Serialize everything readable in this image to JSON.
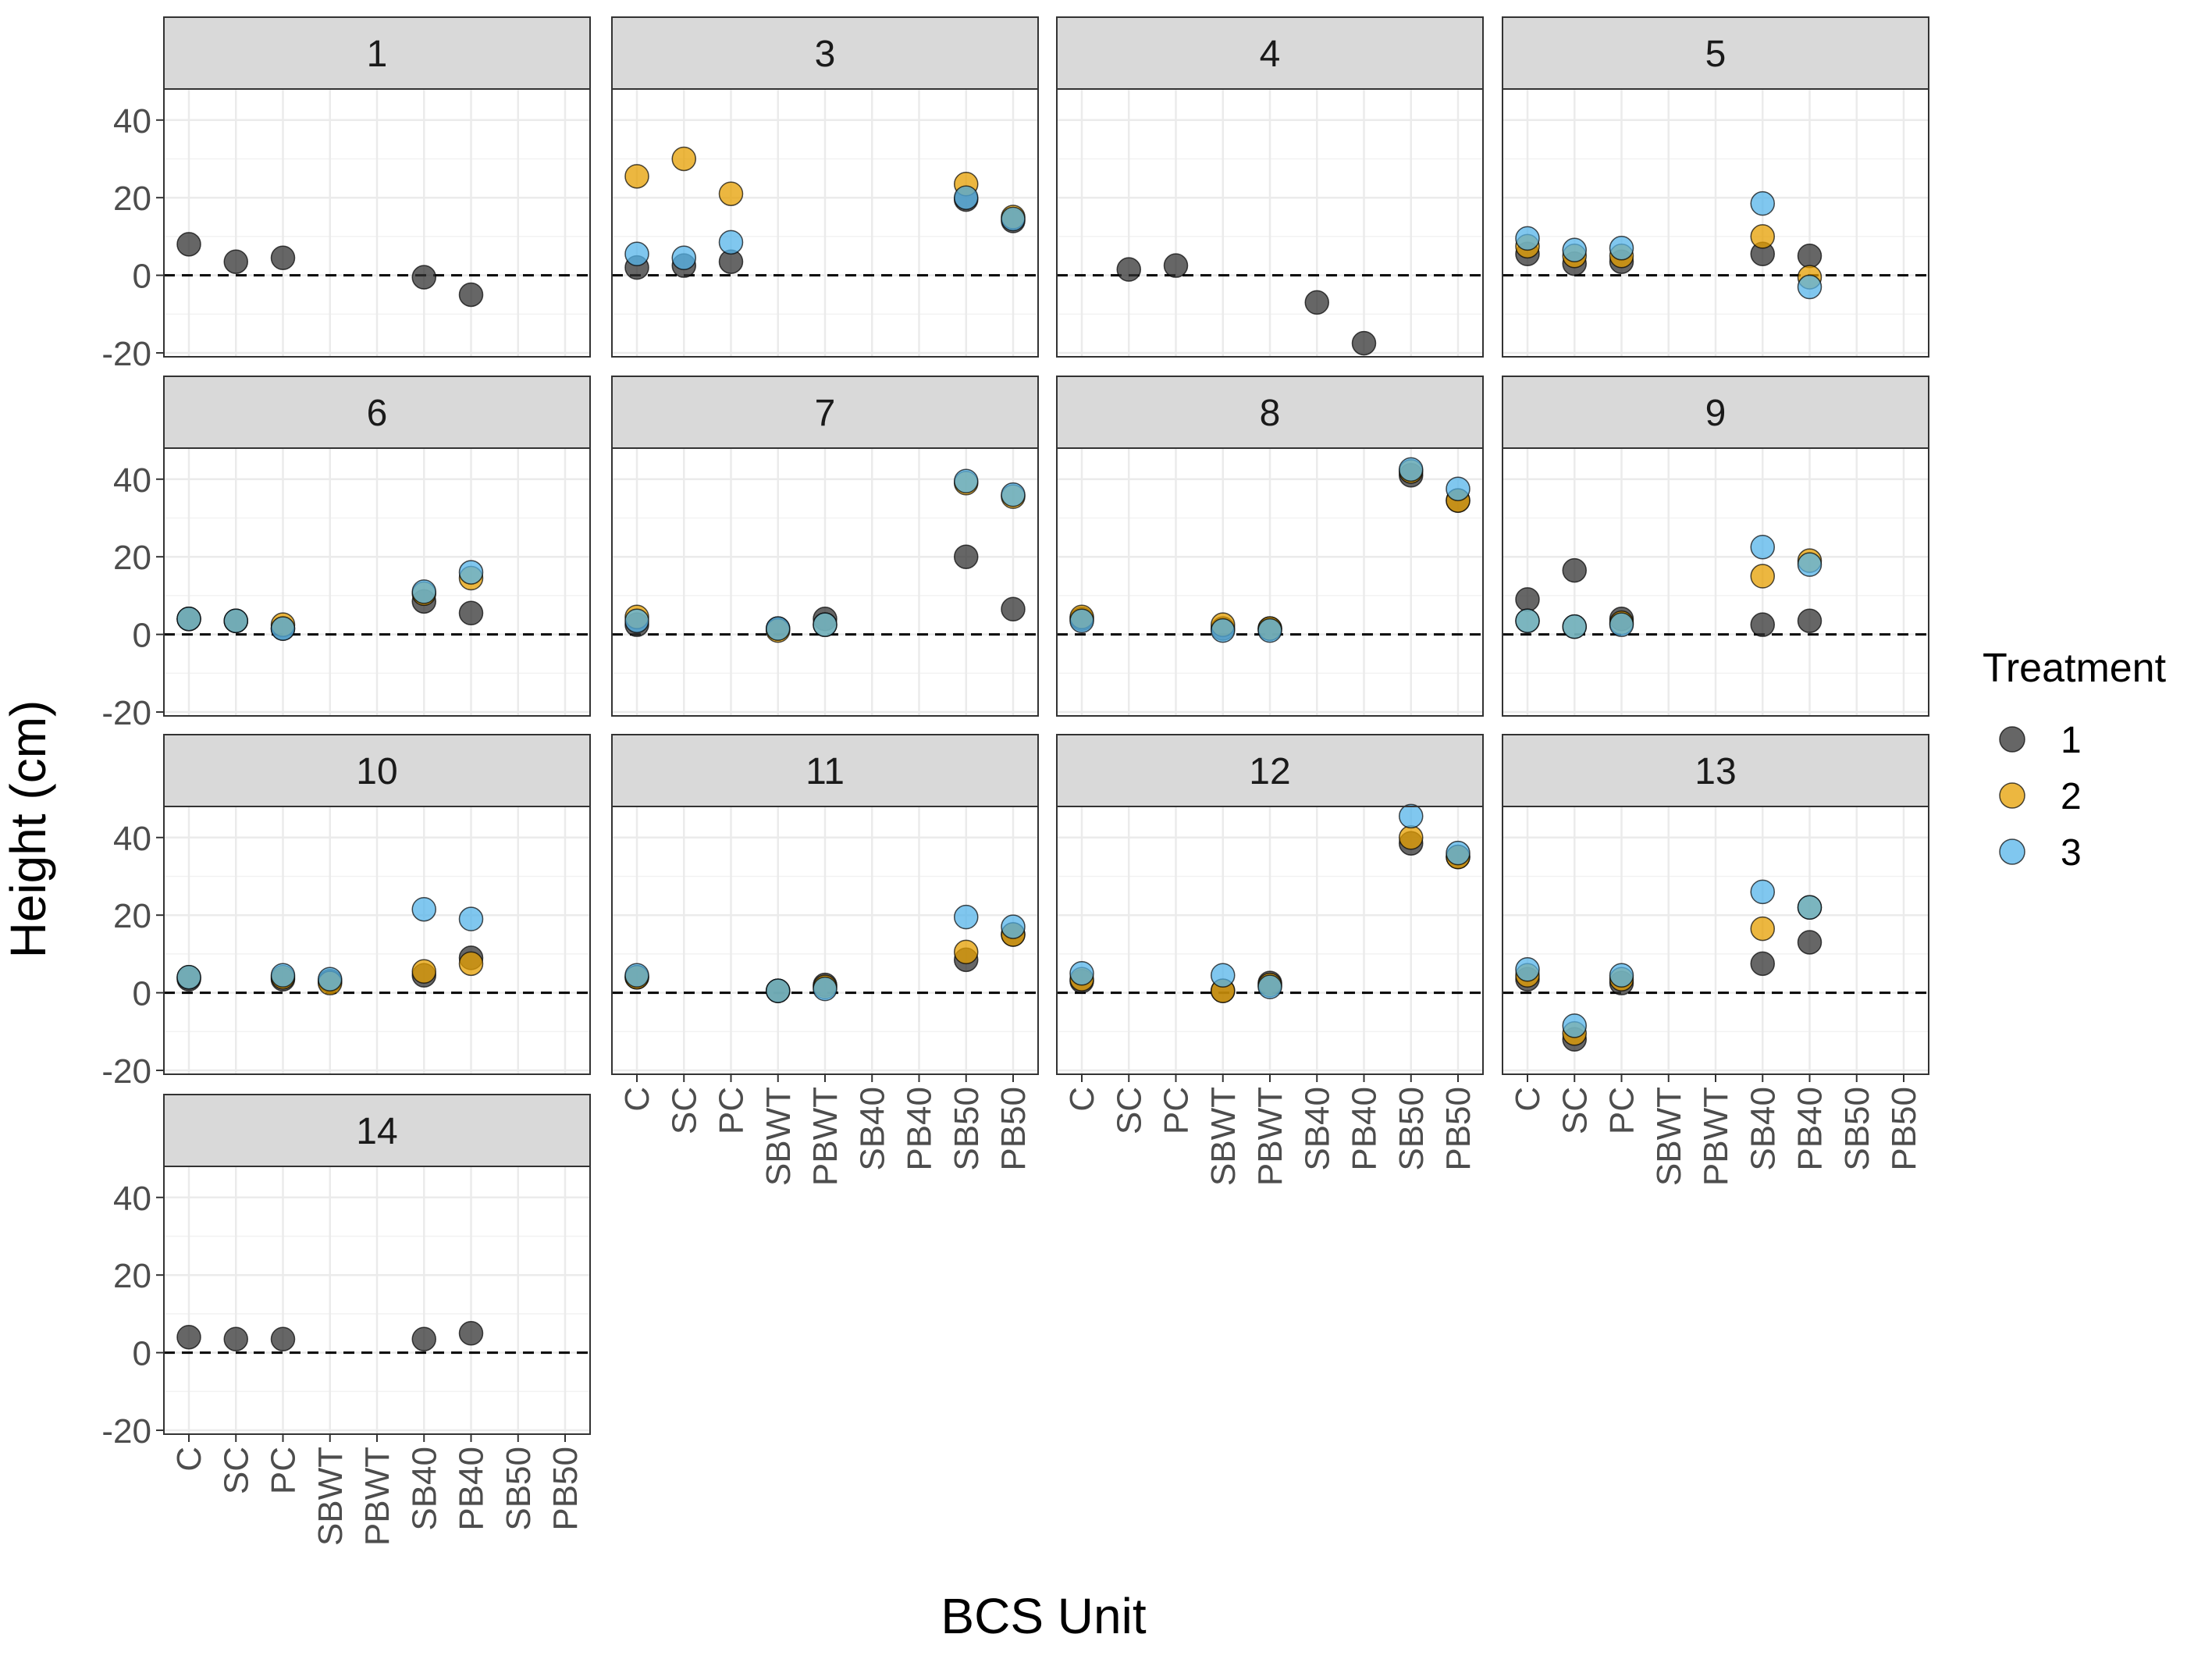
{
  "chart_data": {
    "type": "scatter",
    "facet_by": "BCS panel",
    "x_categories": [
      "C",
      "SC",
      "PC",
      "SBWT",
      "PBWT",
      "SB40",
      "PB40",
      "SB50",
      "PB50"
    ],
    "xlabel": "BCS Unit",
    "ylabel": "Height (cm)",
    "ylim": [
      -21,
      48
    ],
    "y_ticks": [
      -20,
      0,
      20,
      40
    ],
    "reference_line": {
      "y": 0,
      "style": "dashed"
    },
    "grid": true,
    "legend": {
      "title": "Treatment",
      "position": "right",
      "entries": [
        {
          "label": "1",
          "color": "#333333"
        },
        {
          "label": "2",
          "color": "#E69F00"
        },
        {
          "label": "3",
          "color": "#56B4E9"
        }
      ]
    },
    "panels": [
      {
        "title": "1",
        "points": [
          {
            "x": "C",
            "t": "1",
            "y": 8
          },
          {
            "x": "SC",
            "t": "1",
            "y": 3.5
          },
          {
            "x": "PC",
            "t": "1",
            "y": 4.5
          },
          {
            "x": "SB40",
            "t": "1",
            "y": -0.5
          },
          {
            "x": "PB40",
            "t": "1",
            "y": -5
          }
        ]
      },
      {
        "title": "3",
        "points": [
          {
            "x": "C",
            "t": "1",
            "y": 2
          },
          {
            "x": "C",
            "t": "2",
            "y": 25.5
          },
          {
            "x": "C",
            "t": "3",
            "y": 5.5
          },
          {
            "x": "SC",
            "t": "1",
            "y": 2.5
          },
          {
            "x": "SC",
            "t": "2",
            "y": 30
          },
          {
            "x": "SC",
            "t": "3",
            "y": 4.5
          },
          {
            "x": "PC",
            "t": "1",
            "y": 3.5
          },
          {
            "x": "PC",
            "t": "2",
            "y": 21
          },
          {
            "x": "PC",
            "t": "3",
            "y": 8.5
          },
          {
            "x": "SB50",
            "t": "1",
            "y": 19.5
          },
          {
            "x": "SB50",
            "t": "2",
            "y": 23.5
          },
          {
            "x": "SB50",
            "t": "3",
            "y": 20
          },
          {
            "x": "PB50",
            "t": "1",
            "y": 14
          },
          {
            "x": "PB50",
            "t": "2",
            "y": 15
          },
          {
            "x": "PB50",
            "t": "3",
            "y": 14.5
          }
        ]
      },
      {
        "title": "4",
        "points": [
          {
            "x": "SC",
            "t": "1",
            "y": 1.5
          },
          {
            "x": "PC",
            "t": "1",
            "y": 2.5
          },
          {
            "x": "SB40",
            "t": "1",
            "y": -7
          },
          {
            "x": "PB40",
            "t": "1",
            "y": -17.5
          }
        ]
      },
      {
        "title": "5",
        "points": [
          {
            "x": "C",
            "t": "1",
            "y": 5.5
          },
          {
            "x": "C",
            "t": "2",
            "y": 7.5
          },
          {
            "x": "C",
            "t": "3",
            "y": 9.5
          },
          {
            "x": "SC",
            "t": "1",
            "y": 3
          },
          {
            "x": "SC",
            "t": "2",
            "y": 5
          },
          {
            "x": "SC",
            "t": "3",
            "y": 6.5
          },
          {
            "x": "PC",
            "t": "1",
            "y": 3.5
          },
          {
            "x": "PC",
            "t": "2",
            "y": 5
          },
          {
            "x": "PC",
            "t": "3",
            "y": 7
          },
          {
            "x": "SB40",
            "t": "1",
            "y": 5.5
          },
          {
            "x": "SB40",
            "t": "2",
            "y": 10
          },
          {
            "x": "SB40",
            "t": "3",
            "y": 18.5
          },
          {
            "x": "PB40",
            "t": "1",
            "y": 5
          },
          {
            "x": "PB40",
            "t": "2",
            "y": -0.5
          },
          {
            "x": "PB40",
            "t": "3",
            "y": -3
          }
        ]
      },
      {
        "title": "6",
        "points": [
          {
            "x": "C",
            "t": "1",
            "y": 4
          },
          {
            "x": "C",
            "t": "2",
            "y": 4
          },
          {
            "x": "C",
            "t": "3",
            "y": 4
          },
          {
            "x": "SC",
            "t": "1",
            "y": 3.5
          },
          {
            "x": "SC",
            "t": "2",
            "y": 3.5
          },
          {
            "x": "SC",
            "t": "3",
            "y": 3.5
          },
          {
            "x": "PC",
            "t": "1",
            "y": 1.5
          },
          {
            "x": "PC",
            "t": "2",
            "y": 2.5
          },
          {
            "x": "PC",
            "t": "3",
            "y": 1.5
          },
          {
            "x": "SB40",
            "t": "1",
            "y": 8.5
          },
          {
            "x": "SB40",
            "t": "2",
            "y": 10.5
          },
          {
            "x": "SB40",
            "t": "3",
            "y": 11
          },
          {
            "x": "PB40",
            "t": "1",
            "y": 5.5
          },
          {
            "x": "PB40",
            "t": "2",
            "y": 14.5
          },
          {
            "x": "PB40",
            "t": "3",
            "y": 16
          }
        ]
      },
      {
        "title": "7",
        "points": [
          {
            "x": "C",
            "t": "1",
            "y": 2.5
          },
          {
            "x": "C",
            "t": "2",
            "y": 4.5
          },
          {
            "x": "C",
            "t": "3",
            "y": 3.5
          },
          {
            "x": "SBWT",
            "t": "1",
            "y": 1.5
          },
          {
            "x": "SBWT",
            "t": "2",
            "y": 1
          },
          {
            "x": "SBWT",
            "t": "3",
            "y": 1.5
          },
          {
            "x": "PBWT",
            "t": "1",
            "y": 4
          },
          {
            "x": "PBWT",
            "t": "2",
            "y": 2.5
          },
          {
            "x": "PBWT",
            "t": "3",
            "y": 2.5
          },
          {
            "x": "SB50",
            "t": "1",
            "y": 20
          },
          {
            "x": "SB50",
            "t": "2",
            "y": 39
          },
          {
            "x": "SB50",
            "t": "3",
            "y": 39.5
          },
          {
            "x": "PB50",
            "t": "1",
            "y": 6.5
          },
          {
            "x": "PB50",
            "t": "2",
            "y": 35.5
          },
          {
            "x": "PB50",
            "t": "3",
            "y": 36
          }
        ]
      },
      {
        "title": "8",
        "points": [
          {
            "x": "C",
            "t": "1",
            "y": 4
          },
          {
            "x": "C",
            "t": "2",
            "y": 4.5
          },
          {
            "x": "C",
            "t": "3",
            "y": 3.5
          },
          {
            "x": "SBWT",
            "t": "1",
            "y": 1.5
          },
          {
            "x": "SBWT",
            "t": "2",
            "y": 2.5
          },
          {
            "x": "SBWT",
            "t": "3",
            "y": 1
          },
          {
            "x": "PBWT",
            "t": "1",
            "y": 1.5
          },
          {
            "x": "PBWT",
            "t": "2",
            "y": 1.5
          },
          {
            "x": "PBWT",
            "t": "3",
            "y": 1
          },
          {
            "x": "SB50",
            "t": "1",
            "y": 41
          },
          {
            "x": "SB50",
            "t": "2",
            "y": 42
          },
          {
            "x": "SB50",
            "t": "3",
            "y": 42.5
          },
          {
            "x": "PB50",
            "t": "1",
            "y": 34.5
          },
          {
            "x": "PB50",
            "t": "2",
            "y": 34.5
          },
          {
            "x": "PB50",
            "t": "3",
            "y": 37.5
          }
        ]
      },
      {
        "title": "9",
        "points": [
          {
            "x": "C",
            "t": "1",
            "y": 9
          },
          {
            "x": "C",
            "t": "2",
            "y": 3.5
          },
          {
            "x": "C",
            "t": "3",
            "y": 3.5
          },
          {
            "x": "SC",
            "t": "1",
            "y": 16.5
          },
          {
            "x": "SC",
            "t": "2",
            "y": 2
          },
          {
            "x": "SC",
            "t": "3",
            "y": 2
          },
          {
            "x": "PC",
            "t": "1",
            "y": 4
          },
          {
            "x": "PC",
            "t": "2",
            "y": 3
          },
          {
            "x": "PC",
            "t": "3",
            "y": 2.5
          },
          {
            "x": "SB40",
            "t": "1",
            "y": 2.5
          },
          {
            "x": "SB40",
            "t": "2",
            "y": 15
          },
          {
            "x": "SB40",
            "t": "3",
            "y": 22.5
          },
          {
            "x": "PB40",
            "t": "1",
            "y": 3.5
          },
          {
            "x": "PB40",
            "t": "2",
            "y": 19
          },
          {
            "x": "PB40",
            "t": "3",
            "y": 18
          }
        ]
      },
      {
        "title": "10",
        "points": [
          {
            "x": "C",
            "t": "1",
            "y": 3.5
          },
          {
            "x": "C",
            "t": "2",
            "y": 4
          },
          {
            "x": "C",
            "t": "3",
            "y": 4
          },
          {
            "x": "PC",
            "t": "1",
            "y": 3.5
          },
          {
            "x": "PC",
            "t": "2",
            "y": 4
          },
          {
            "x": "PC",
            "t": "3",
            "y": 4.5
          },
          {
            "x": "SBWT",
            "t": "1",
            "y": 3
          },
          {
            "x": "SBWT",
            "t": "2",
            "y": 2.5
          },
          {
            "x": "SBWT",
            "t": "3",
            "y": 3.5
          },
          {
            "x": "SB40",
            "t": "1",
            "y": 4.5
          },
          {
            "x": "SB40",
            "t": "2",
            "y": 5.5
          },
          {
            "x": "SB40",
            "t": "3",
            "y": 21.5
          },
          {
            "x": "PB40",
            "t": "1",
            "y": 9
          },
          {
            "x": "PB40",
            "t": "2",
            "y": 7.5
          },
          {
            "x": "PB40",
            "t": "3",
            "y": 19
          }
        ]
      },
      {
        "title": "11",
        "points": [
          {
            "x": "C",
            "t": "1",
            "y": 4
          },
          {
            "x": "C",
            "t": "2",
            "y": 4
          },
          {
            "x": "C",
            "t": "3",
            "y": 4.5
          },
          {
            "x": "SBWT",
            "t": "1",
            "y": 0.5
          },
          {
            "x": "SBWT",
            "t": "2",
            "y": 0.5
          },
          {
            "x": "SBWT",
            "t": "3",
            "y": 0.5
          },
          {
            "x": "PBWT",
            "t": "1",
            "y": 2
          },
          {
            "x": "PBWT",
            "t": "2",
            "y": 1.5
          },
          {
            "x": "PBWT",
            "t": "3",
            "y": 1
          },
          {
            "x": "SB50",
            "t": "1",
            "y": 8.5
          },
          {
            "x": "SB50",
            "t": "2",
            "y": 10.5
          },
          {
            "x": "SB50",
            "t": "3",
            "y": 19.5
          },
          {
            "x": "PB50",
            "t": "1",
            "y": 15
          },
          {
            "x": "PB50",
            "t": "2",
            "y": 15
          },
          {
            "x": "PB50",
            "t": "3",
            "y": 17
          }
        ]
      },
      {
        "title": "12",
        "points": [
          {
            "x": "C",
            "t": "1",
            "y": 3
          },
          {
            "x": "C",
            "t": "2",
            "y": 3.5
          },
          {
            "x": "C",
            "t": "3",
            "y": 5
          },
          {
            "x": "SBWT",
            "t": "1",
            "y": 0.5
          },
          {
            "x": "SBWT",
            "t": "2",
            "y": 0.5
          },
          {
            "x": "SBWT",
            "t": "3",
            "y": 4.5
          },
          {
            "x": "PBWT",
            "t": "1",
            "y": 2.5
          },
          {
            "x": "PBWT",
            "t": "2",
            "y": 2
          },
          {
            "x": "PBWT",
            "t": "3",
            "y": 1.5
          },
          {
            "x": "SB50",
            "t": "1",
            "y": 38.5
          },
          {
            "x": "SB50",
            "t": "2",
            "y": 40
          },
          {
            "x": "SB50",
            "t": "3",
            "y": 45.5
          },
          {
            "x": "PB50",
            "t": "1",
            "y": 35
          },
          {
            "x": "PB50",
            "t": "2",
            "y": 35
          },
          {
            "x": "PB50",
            "t": "3",
            "y": 36
          }
        ]
      },
      {
        "title": "13",
        "points": [
          {
            "x": "C",
            "t": "1",
            "y": 3.5
          },
          {
            "x": "C",
            "t": "2",
            "y": 4.5
          },
          {
            "x": "C",
            "t": "3",
            "y": 6
          },
          {
            "x": "SC",
            "t": "1",
            "y": -12
          },
          {
            "x": "SC",
            "t": "2",
            "y": -10.5
          },
          {
            "x": "SC",
            "t": "3",
            "y": -8.5
          },
          {
            "x": "PC",
            "t": "1",
            "y": 2.5
          },
          {
            "x": "PC",
            "t": "2",
            "y": 3.5
          },
          {
            "x": "PC",
            "t": "3",
            "y": 4.5
          },
          {
            "x": "SB40",
            "t": "1",
            "y": 7.5
          },
          {
            "x": "SB40",
            "t": "2",
            "y": 16.5
          },
          {
            "x": "SB40",
            "t": "3",
            "y": 26
          },
          {
            "x": "PB40",
            "t": "1",
            "y": 13
          },
          {
            "x": "PB40",
            "t": "2",
            "y": 22
          },
          {
            "x": "PB40",
            "t": "3",
            "y": 22
          }
        ]
      },
      {
        "title": "14",
        "points": [
          {
            "x": "C",
            "t": "1",
            "y": 4
          },
          {
            "x": "SC",
            "t": "1",
            "y": 3.5
          },
          {
            "x": "PC",
            "t": "1",
            "y": 3.5
          },
          {
            "x": "SB40",
            "t": "1",
            "y": 3.5
          },
          {
            "x": "PB40",
            "t": "1",
            "y": 5
          }
        ]
      }
    ]
  }
}
